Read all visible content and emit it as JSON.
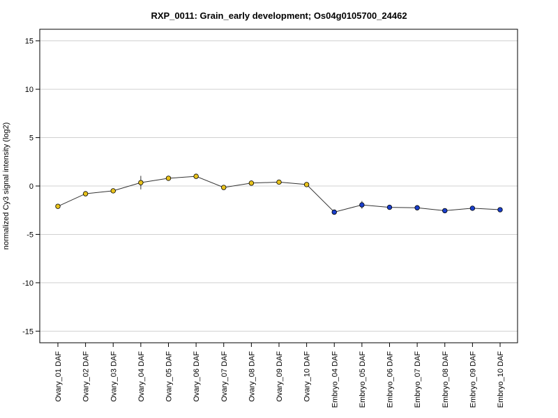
{
  "chart_data": {
    "type": "line",
    "title": "RXP_0011: Grain_early development; Os04g0105700_24462",
    "ylabel": "normalized Cy3 signal intensity (log2)",
    "xlabel": "",
    "ylim": [
      -16.2,
      16.2
    ],
    "yticks": [
      15,
      10,
      5,
      0,
      -5,
      -10,
      -15
    ],
    "grid": true,
    "categories": [
      "Ovary_01 DAF",
      "Ovary_02 DAF",
      "Ovary_03 DAF",
      "Ovary_04 DAF",
      "Ovary_05 DAF",
      "Ovary_06 DAF",
      "Ovary_07 DAF",
      "Ovary_08 DAF",
      "Ovary_09 DAF",
      "Ovary_10 DAF",
      "Embryo_04 DAF",
      "Embryo_05 DAF",
      "Embryo_06 DAF",
      "Embryo_07 DAF",
      "Embryo_08 DAF",
      "Embryo_09 DAF",
      "Embryo_10 DAF"
    ],
    "series": [
      {
        "values": [
          -2.1,
          -0.8,
          -0.5,
          0.35,
          0.8,
          1.0,
          -0.15,
          0.3,
          0.4,
          0.15,
          -2.7,
          -1.95,
          -2.2,
          -2.25,
          -2.55,
          -2.3,
          -2.45
        ],
        "errors": [
          0.15,
          0.1,
          0.15,
          0.7,
          0.15,
          0.1,
          0.1,
          0.15,
          0.15,
          0.1,
          0.15,
          0.4,
          0.1,
          0.1,
          0.1,
          0.1,
          0.1
        ],
        "colors": [
          "#e8c21c",
          "#e8c21c",
          "#e8c21c",
          "#e8c21c",
          "#e8c21c",
          "#e8c21c",
          "#e8c21c",
          "#e8c21c",
          "#e8c21c",
          "#e8c21c",
          "#1a3fcc",
          "#1a3fcc",
          "#1a3fcc",
          "#1a3fcc",
          "#1a3fcc",
          "#1a3fcc",
          "#1a3fcc"
        ]
      }
    ],
    "line_color": "#333333",
    "grid_color": "#d0d0d0"
  }
}
